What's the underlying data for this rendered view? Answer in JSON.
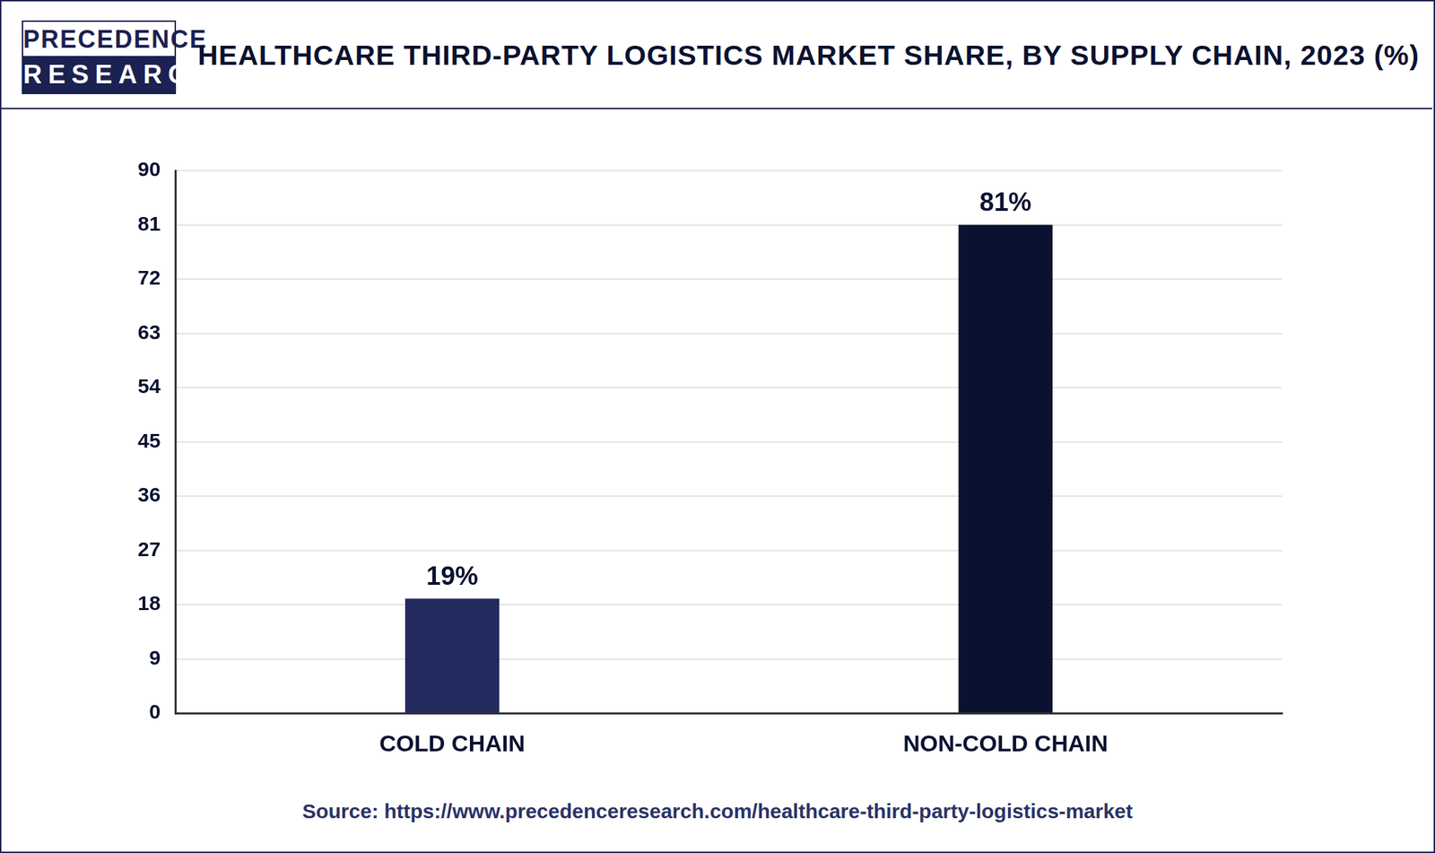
{
  "logo": [
    "PRECEDENCE",
    "RESEARCH"
  ],
  "source": "Source: https://www.precedenceresearch.com/healthcare-third-party-logistics-market",
  "chart_data": {
    "type": "bar",
    "title": "HEALTHCARE THIRD-PARTY LOGISTICS MARKET SHARE, BY SUPPLY CHAIN, 2023 (%)",
    "categories": [
      "COLD CHAIN",
      "NON-COLD CHAIN"
    ],
    "values": [
      19,
      81
    ],
    "value_labels": [
      "19%",
      "81%"
    ],
    "colors": [
      "#232a5e",
      "#0b1230"
    ],
    "ylim": [
      0,
      90
    ],
    "yticks": [
      0,
      9,
      18,
      27,
      36,
      45,
      54,
      63,
      72,
      81,
      90
    ],
    "grid": true,
    "data_labels": true
  }
}
